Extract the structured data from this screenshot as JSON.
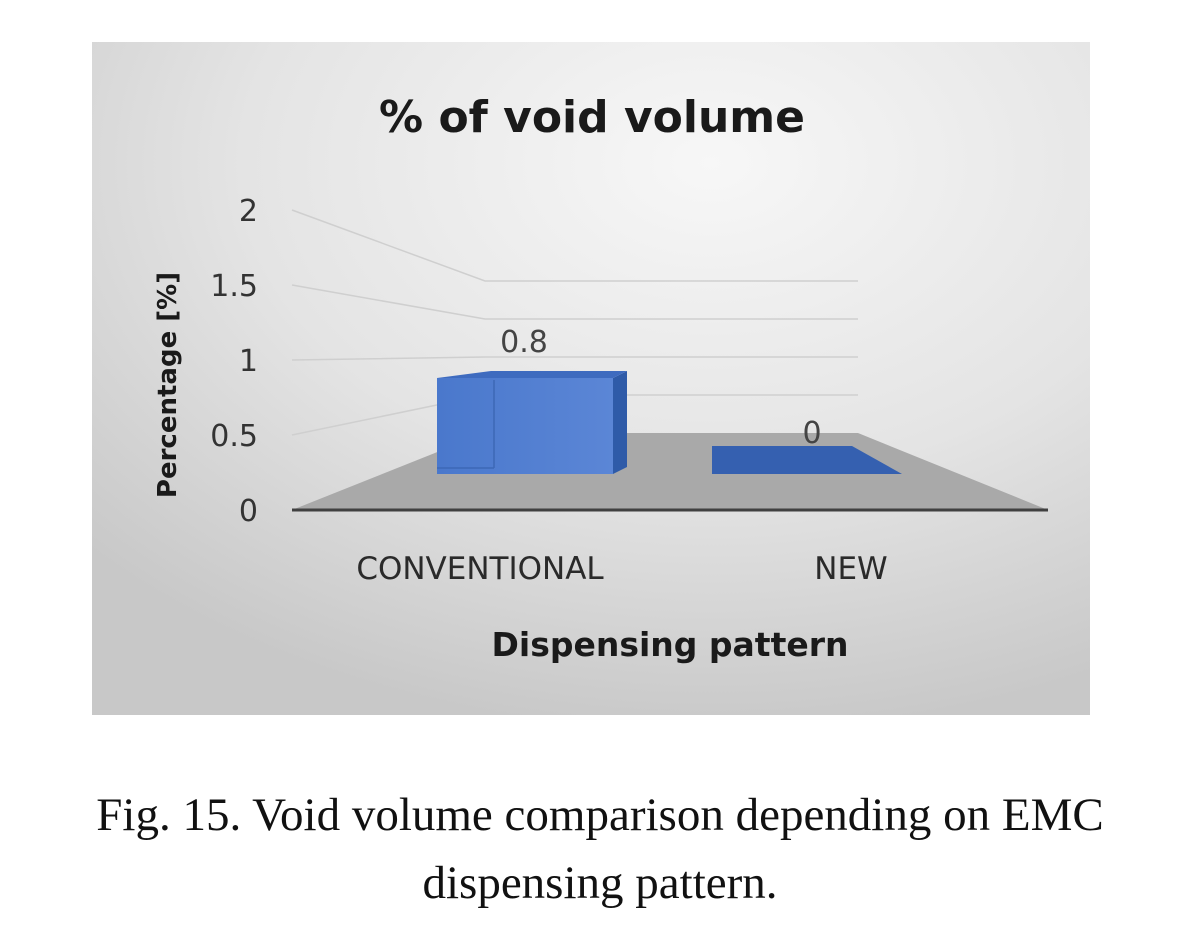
{
  "chart_data": {
    "type": "bar",
    "title": "% of void volume",
    "xlabel": "Dispensing pattern",
    "ylabel": "Percentage [%]",
    "categories": [
      "CONVENTIONAL",
      "NEW"
    ],
    "values": [
      0.8,
      0
    ],
    "data_labels": [
      "0.8",
      "0"
    ],
    "ylim": [
      0,
      2
    ],
    "y_ticks": [
      0,
      0.5,
      1,
      1.5,
      2
    ],
    "y_tick_labels": [
      "0",
      "0.5",
      "1",
      "1.5",
      "2"
    ],
    "grid": true,
    "style": "3d",
    "bar_color": "#4472C4",
    "floor_color": "#A6A6A6",
    "background_color": "#DCDCDC"
  },
  "caption": {
    "line1": "Fig. 15. Void volume comparison depending on EMC",
    "line2": "dispensing pattern."
  }
}
